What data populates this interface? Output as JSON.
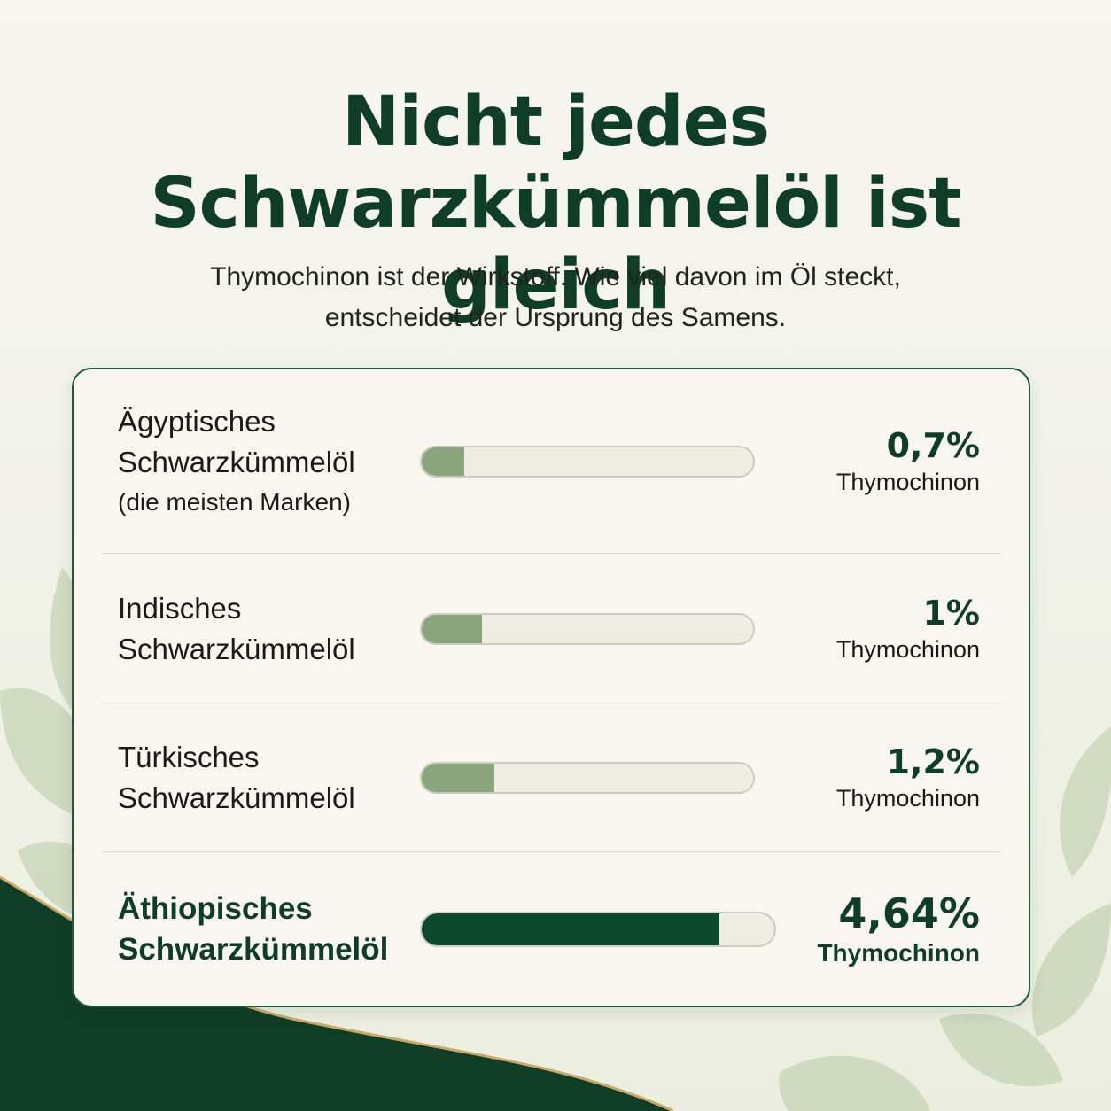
{
  "header": {
    "title": "Nicht jedes Schwarzkümmelöl ist gleich",
    "subtitle": "Thymochinon ist der Wirkstoff. Wie viel davon im Öl steckt, entscheidet der Ursprung des Samens."
  },
  "colors": {
    "primary": "#0f3d26",
    "highlight_bar": "#0d4a2c",
    "standard_bar": "#8aa47e",
    "track": "#efede2",
    "background": "#f4f3ea"
  },
  "chart_data": {
    "type": "bar",
    "orientation": "horizontal",
    "unit": "Thymochinon",
    "categories": [
      "Ägyptisches Schwarzkümmelöl (die meisten Marken)",
      "Indisches Schwarzkümmelöl",
      "Türkisches Schwarzkümmelöl",
      "Äthiopisches Schwarzkümmelöl"
    ],
    "values": [
      0.7,
      1,
      1.2,
      4.64
    ],
    "xlim": [
      0,
      5.5
    ],
    "grid": false,
    "rows": [
      {
        "line1": "Ägyptisches",
        "line2": "Schwarzkümmelöl",
        "note": "(die meisten Marken)",
        "value_label": "0,7%",
        "unit_label": "Thymochinon",
        "value": 0.7,
        "highlight": false
      },
      {
        "line1": "Indisches",
        "line2": "Schwarzkümmelöl",
        "note": "",
        "value_label": "1%",
        "unit_label": "Thymochinon",
        "value": 1,
        "highlight": false
      },
      {
        "line1": "Türkisches",
        "line2": "Schwarzkümmelöl",
        "note": "",
        "value_label": "1,2%",
        "unit_label": "Thymochinon",
        "value": 1.2,
        "highlight": false
      },
      {
        "line1": "Äthiopisches",
        "line2": "Schwarzkümmelöl",
        "note": "",
        "value_label": "4,64%",
        "unit_label": "Thymochinon",
        "value": 4.64,
        "highlight": true
      }
    ]
  }
}
